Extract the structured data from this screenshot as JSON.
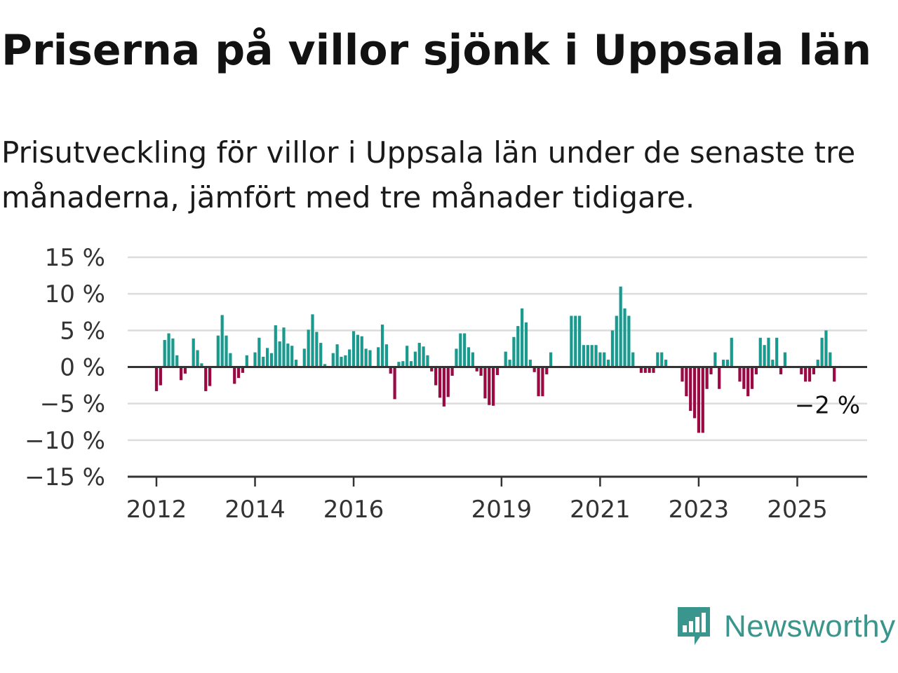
{
  "title": "Priserna på villor sjönk i Uppsala län",
  "subtitle": "Prisutveckling för villor i Uppsala län under de senaste tre månaderna, jämfört med tre månader tidigare.",
  "brand": {
    "name": "Newsworthy",
    "icon": "newsworthy-bar-chart-icon",
    "color": "#3a968c"
  },
  "colors": {
    "positive": "#1a9a8e",
    "negative": "#990a44",
    "grid": "#dcdcdc",
    "axis": "#333333"
  },
  "chart_data": {
    "type": "bar",
    "title": "Priserna på villor sjönk i Uppsala län",
    "xlabel": "",
    "ylabel": "",
    "ylim": [
      -15,
      15
    ],
    "y_ticks": [
      15,
      10,
      5,
      0,
      -5,
      -10,
      -15
    ],
    "y_tick_labels": [
      "15 %",
      "10 %",
      "5 %",
      "0 %",
      "−5 %",
      "−10 %",
      "−15 %"
    ],
    "x_range": [
      "2011-06",
      "2026-06"
    ],
    "x_ticks": [
      {
        "date": "2012-01",
        "label": "2012"
      },
      {
        "date": "2014-01",
        "label": "2014"
      },
      {
        "date": "2016-01",
        "label": "2016"
      },
      {
        "date": "2019-01",
        "label": "2019"
      },
      {
        "date": "2021-01",
        "label": "2021"
      },
      {
        "date": "2023-01",
        "label": "2023"
      },
      {
        "date": "2025-01",
        "label": "2025"
      }
    ],
    "grid": true,
    "legend": "none",
    "start_month": "2012-01",
    "values": [
      -3.3,
      -2.5,
      3.7,
      4.6,
      3.9,
      1.6,
      -1.8,
      -0.9,
      0,
      3.9,
      2.3,
      0.5,
      -3.3,
      -2.6,
      0,
      4.3,
      7.1,
      4.3,
      1.9,
      -2.3,
      -1.5,
      -0.8,
      1.6,
      0,
      2,
      4,
      1.4,
      2.6,
      1.9,
      5.7,
      3.5,
      5.4,
      3.2,
      2.9,
      1,
      0,
      2.5,
      5.1,
      7.2,
      4.8,
      3.3,
      0.4,
      0,
      1.9,
      3.1,
      1.4,
      1.6,
      2.4,
      4.9,
      4.4,
      4.2,
      2.5,
      2.3,
      0,
      2.7,
      5.8,
      3.1,
      -0.9,
      -4.4,
      0.7,
      0.8,
      2.9,
      0.8,
      2.1,
      3.3,
      2.8,
      1.6,
      -0.6,
      -2.5,
      -4.2,
      -5.4,
      -4.1,
      -1.2,
      2.5,
      4.6,
      4.6,
      2.7,
      2,
      -0.6,
      -1.2,
      -4.3,
      -5.2,
      -5.3,
      -1.1,
      0,
      2.1,
      1,
      4.1,
      5.6,
      8,
      6.1,
      1,
      -0.7,
      -4,
      -4,
      -1,
      2,
      0,
      0,
      0,
      0,
      7,
      7,
      7,
      3,
      3,
      3,
      3,
      2,
      2,
      1,
      5,
      7,
      11,
      8,
      7,
      2,
      0,
      -0.8,
      -0.8,
      -0.8,
      -0.8,
      2,
      2,
      1,
      0,
      0,
      0,
      -2,
      -4,
      -6,
      -7,
      -9,
      -9,
      -3,
      -1,
      2,
      -3,
      1,
      1,
      4,
      0,
      -2,
      -3,
      -4,
      -3,
      -1,
      4,
      3,
      4,
      1,
      4,
      -1,
      2,
      0,
      0,
      0,
      -1,
      -2,
      -2,
      -1,
      1,
      4,
      5,
      2,
      -2
    ],
    "end_label": "−2 %"
  }
}
